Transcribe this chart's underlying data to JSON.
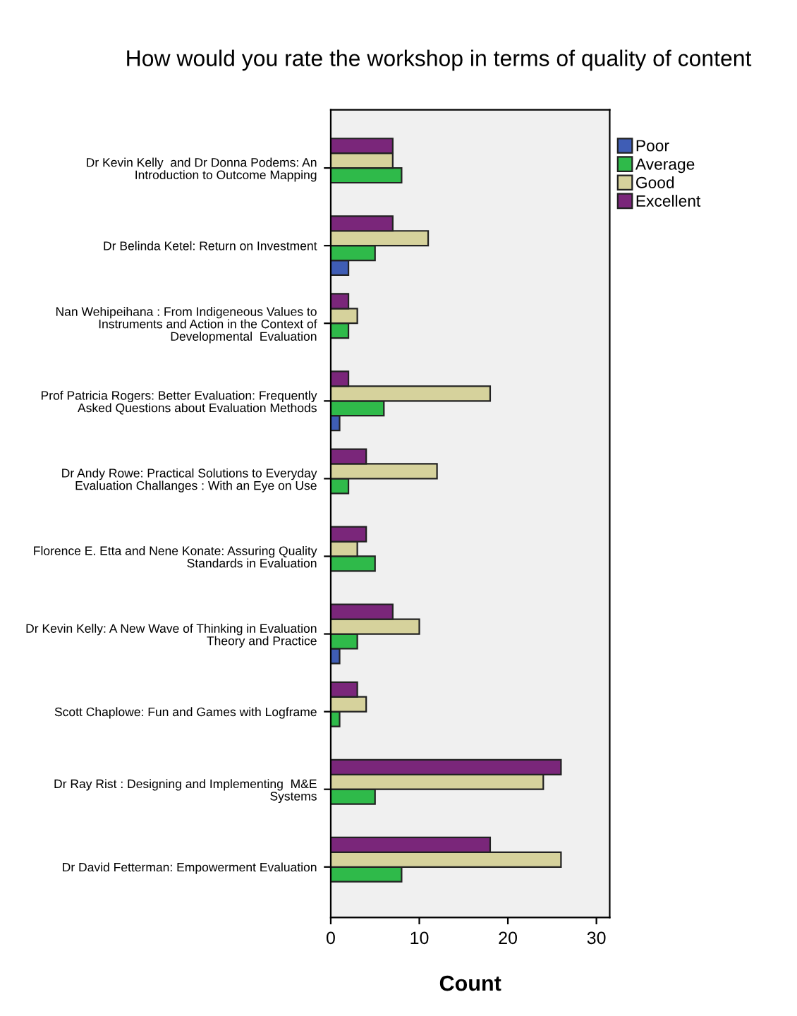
{
  "chart_data": {
    "type": "bar",
    "orientation": "horizontal",
    "title": "How would you rate the workshop in terms of quality of content",
    "xlabel": "Count",
    "categories": [
      "Dr Kevin Kelly  and Dr Donna Podems: An\nIntroduction to Outcome Mapping",
      "Dr Belinda Ketel: Return on Investment",
      "Nan Wehipeihana : From Indigeneous Values to\nInstruments and Action in the Context of\nDevelopmental  Evaluation",
      "Prof Patricia Rogers: Better Evaluation: Frequently\nAsked Questions about Evaluation Methods",
      "Dr Andy Rowe: Practical Solutions to Everyday\nEvaluation Challanges : With an Eye on Use",
      "Florence E. Etta and Nene Konate: Assuring Quality\nStandards in Evaluation",
      "Dr Kevin Kelly: A New Wave of Thinking in Evaluation\nTheory and Practice",
      "Scott Chaplowe: Fun and Games with Logframe",
      "Dr Ray Rist : Designing and Implementing  M&E\nSystems",
      "Dr David Fetterman: Empowerment Evaluation"
    ],
    "series": [
      {
        "name": "Poor",
        "color": "#3f5db5",
        "values": [
          null,
          2,
          null,
          1,
          null,
          null,
          1,
          null,
          null,
          null
        ]
      },
      {
        "name": "Average",
        "color": "#2fba4a",
        "values": [
          8,
          5,
          2,
          6,
          2,
          5,
          3,
          1,
          5,
          8
        ]
      },
      {
        "name": "Good",
        "color": "#d6d29c",
        "values": [
          7,
          11,
          3,
          18,
          12,
          3,
          10,
          4,
          24,
          26
        ]
      },
      {
        "name": "Excellent",
        "color": "#7a267a",
        "values": [
          7,
          7,
          2,
          2,
          4,
          4,
          7,
          3,
          26,
          18
        ]
      }
    ],
    "xlim": [
      0,
      31.5
    ],
    "xticks": [
      0,
      10,
      20,
      30
    ],
    "grid": false,
    "legend": "top right"
  }
}
